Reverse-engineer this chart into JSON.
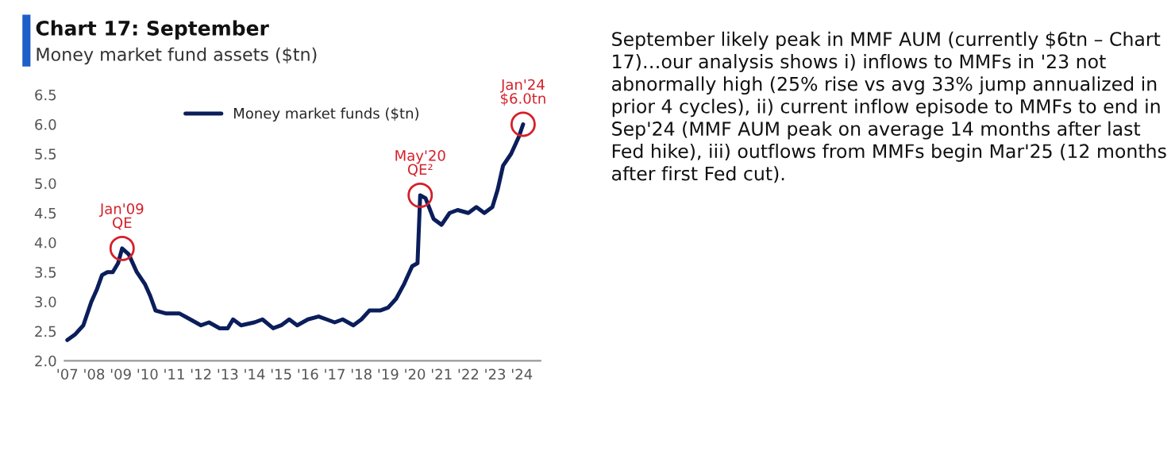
{
  "chart_data": [
    {
      "type": "line",
      "title": "Chart 17: September",
      "subtitle": "Money market fund assets ($tn)",
      "x": [
        2007.0,
        2007.3,
        2007.6,
        2007.9,
        2008.1,
        2008.3,
        2008.5,
        2008.7,
        2008.9,
        2009.05,
        2009.3,
        2009.6,
        2009.9,
        2010.1,
        2010.3,
        2010.7,
        2011.2,
        2011.6,
        2012.0,
        2012.3,
        2012.7,
        2013.0,
        2013.2,
        2013.5,
        2014.0,
        2014.3,
        2014.7,
        2015.0,
        2015.3,
        2015.6,
        2016.0,
        2016.4,
        2016.7,
        2017.0,
        2017.3,
        2017.7,
        2018.0,
        2018.3,
        2018.7,
        2019.0,
        2019.3,
        2019.6,
        2019.9,
        2020.1,
        2020.2,
        2020.4,
        2020.7,
        2021.0,
        2021.3,
        2021.6,
        2022.0,
        2022.3,
        2022.6,
        2022.9,
        2023.1,
        2023.3,
        2023.6,
        2023.9,
        2024.05
      ],
      "series": [
        {
          "name": "Money market funds ($tn)",
          "color": "#0b1e5b",
          "values": [
            2.35,
            2.45,
            2.6,
            3.0,
            3.2,
            3.45,
            3.5,
            3.5,
            3.65,
            3.9,
            3.8,
            3.5,
            3.3,
            3.1,
            2.85,
            2.8,
            2.8,
            2.7,
            2.6,
            2.65,
            2.55,
            2.55,
            2.7,
            2.6,
            2.65,
            2.7,
            2.55,
            2.6,
            2.7,
            2.6,
            2.7,
            2.75,
            2.7,
            2.65,
            2.7,
            2.6,
            2.7,
            2.85,
            2.85,
            2.9,
            3.05,
            3.3,
            3.6,
            3.65,
            4.8,
            4.75,
            4.4,
            4.3,
            4.5,
            4.55,
            4.5,
            4.6,
            4.5,
            4.6,
            4.9,
            5.3,
            5.5,
            5.8,
            6.0
          ]
        }
      ],
      "xlim": [
        2006.9,
        2024.7
      ],
      "xticks": [
        {
          "value": 2007,
          "label": "'07"
        },
        {
          "value": 2008,
          "label": "'08"
        },
        {
          "value": 2009,
          "label": "'09"
        },
        {
          "value": 2010,
          "label": "'10"
        },
        {
          "value": 2011,
          "label": "'11"
        },
        {
          "value": 2012,
          "label": "'12"
        },
        {
          "value": 2013,
          "label": "'13"
        },
        {
          "value": 2014,
          "label": "'14"
        },
        {
          "value": 2015,
          "label": "'15"
        },
        {
          "value": 2016,
          "label": "'16"
        },
        {
          "value": 2017,
          "label": "'17"
        },
        {
          "value": 2018,
          "label": "'18"
        },
        {
          "value": 2019,
          "label": "'19"
        },
        {
          "value": 2020,
          "label": "'20"
        },
        {
          "value": 2021,
          "label": "'21"
        },
        {
          "value": 2022,
          "label": "'22"
        },
        {
          "value": 2023,
          "label": "'23"
        },
        {
          "value": 2024,
          "label": "'24"
        }
      ],
      "ylim": [
        2.0,
        6.5
      ],
      "yticks": [
        {
          "value": 2.0,
          "label": "2.0"
        },
        {
          "value": 2.5,
          "label": "2.5"
        },
        {
          "value": 3.0,
          "label": "3.0"
        },
        {
          "value": 3.5,
          "label": "3.5"
        },
        {
          "value": 4.0,
          "label": "4.0"
        },
        {
          "value": 4.5,
          "label": "4.5"
        },
        {
          "value": 5.0,
          "label": "5.0"
        },
        {
          "value": 5.5,
          "label": "5.5"
        },
        {
          "value": 6.0,
          "label": "6.0"
        },
        {
          "value": 6.5,
          "label": "6.5"
        }
      ],
      "annotations": [
        {
          "text": "Jan'09\nQE",
          "x": 2009.05,
          "y": 3.9
        },
        {
          "text": "May'20\nQE²",
          "x": 2020.2,
          "y": 4.8
        },
        {
          "text": "Jan'24\n$6.0tn",
          "x": 2024.05,
          "y": 6.0
        }
      ],
      "grid": false,
      "legend": "top",
      "line_style": "solid",
      "marker": "none"
    },
    {
      "type": "other",
      "annotations": [
        "September likely peak in MMF AUM (currently $6tn – Chart 17)…our analysis shows i) inflows to MMFs in '23 not abnormally high (25% rise vs avg 33% jump annualized in prior 4 cycles), ii) current inflow episode to MMFs to end in Sep'24 (MMF AUM peak on average 14 months after last Fed hike), iii) outflows from MMFs begin Mar'25 (12 months after first Fed cut)."
      ]
    }
  ]
}
